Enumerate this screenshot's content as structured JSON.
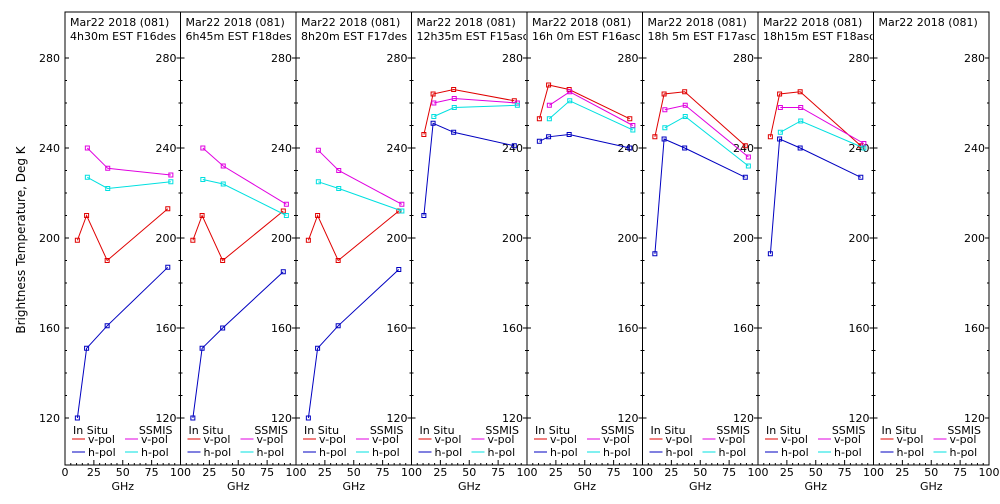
{
  "figure": {
    "ylabel": "Brightness Temperature, Deg K",
    "y_ticks": [
      "120",
      "160",
      "200",
      "240",
      "280"
    ],
    "x_ticks_first": [
      "0",
      "25",
      "50",
      "75",
      "100"
    ],
    "x_ticks_rest": [
      "25",
      "50",
      "75",
      "100"
    ],
    "xlabel": "GHz",
    "legend_left_header": "In Situ",
    "legend_right_header": "SSMIS",
    "legend_v": "v-pol",
    "legend_h": "h-pol",
    "colors": {
      "insitu_v": "#e00000",
      "insitu_h": "#0000c0",
      "ssmis_v": "#e000e0",
      "ssmis_h": "#00e0e0"
    }
  },
  "chart_data": [
    {
      "type": "line",
      "title": "Mar22 2018 (081)",
      "subtitle": "4h30m EST F16des",
      "xlabel": "GHz",
      "ylabel": "Brightness Temperature, Deg K",
      "xlim": [
        0,
        100
      ],
      "ylim": [
        115,
        290
      ],
      "series": [
        {
          "name": "In Situ v-pol",
          "x": [
            10.7,
            18.7,
            36.5,
            89.0
          ],
          "values": [
            199,
            210,
            190,
            213
          ]
        },
        {
          "name": "In Situ h-pol",
          "x": [
            10.7,
            18.7,
            36.5,
            89.0
          ],
          "values": [
            120,
            151,
            161,
            187
          ]
        },
        {
          "name": "SSMIS v-pol",
          "x": [
            19.35,
            37.0,
            91.655
          ],
          "values": [
            240,
            231,
            228
          ]
        },
        {
          "name": "SSMIS h-pol",
          "x": [
            19.35,
            37.0,
            91.655
          ],
          "values": [
            227,
            222,
            225
          ]
        }
      ]
    },
    {
      "type": "line",
      "title": "Mar22 2018 (081)",
      "subtitle": "6h45m EST F18des",
      "xlabel": "GHz",
      "ylabel": "",
      "xlim": [
        0,
        100
      ],
      "ylim": [
        115,
        290
      ],
      "series": [
        {
          "name": "In Situ v-pol",
          "x": [
            10.7,
            18.7,
            36.5,
            89.0
          ],
          "values": [
            199,
            210,
            190,
            212
          ]
        },
        {
          "name": "In Situ h-pol",
          "x": [
            10.7,
            18.7,
            36.5,
            89.0
          ],
          "values": [
            120,
            151,
            160,
            185
          ]
        },
        {
          "name": "SSMIS v-pol",
          "x": [
            19.35,
            37.0,
            91.655
          ],
          "values": [
            240,
            232,
            215
          ]
        },
        {
          "name": "SSMIS h-pol",
          "x": [
            19.35,
            37.0,
            91.655
          ],
          "values": [
            226,
            224,
            210
          ]
        }
      ]
    },
    {
      "type": "line",
      "title": "Mar22 2018 (081)",
      "subtitle": "8h20m EST F17des",
      "xlabel": "GHz",
      "ylabel": "",
      "xlim": [
        0,
        100
      ],
      "ylim": [
        115,
        290
      ],
      "series": [
        {
          "name": "In Situ v-pol",
          "x": [
            10.7,
            18.7,
            36.5,
            89.0
          ],
          "values": [
            199,
            210,
            190,
            212
          ]
        },
        {
          "name": "In Situ h-pol",
          "x": [
            10.7,
            18.7,
            36.5,
            89.0
          ],
          "values": [
            120,
            151,
            161,
            186
          ]
        },
        {
          "name": "SSMIS v-pol",
          "x": [
            19.35,
            37.0,
            91.655
          ],
          "values": [
            239,
            230,
            215
          ]
        },
        {
          "name": "SSMIS h-pol",
          "x": [
            19.35,
            37.0,
            91.655
          ],
          "values": [
            225,
            222,
            212
          ]
        }
      ]
    },
    {
      "type": "line",
      "title": "Mar22 2018 (081)",
      "subtitle": "12h35m EST F15asc",
      "xlabel": "GHz",
      "ylabel": "",
      "xlim": [
        0,
        100
      ],
      "ylim": [
        115,
        290
      ],
      "series": [
        {
          "name": "In Situ v-pol",
          "x": [
            10.7,
            18.7,
            36.5,
            89.0
          ],
          "values": [
            246,
            264,
            266,
            261
          ]
        },
        {
          "name": "In Situ h-pol",
          "x": [
            10.7,
            18.7,
            36.5,
            89.0
          ],
          "values": [
            210,
            251,
            247,
            241
          ]
        },
        {
          "name": "SSMIS v-pol",
          "x": [
            19.35,
            37.0,
            91.655
          ],
          "values": [
            260,
            262,
            260
          ]
        },
        {
          "name": "SSMIS h-pol",
          "x": [
            19.35,
            37.0,
            91.655
          ],
          "values": [
            254,
            258,
            259
          ]
        }
      ]
    },
    {
      "type": "line",
      "title": "Mar22 2018 (081)",
      "subtitle": "16h 0m EST F16asc",
      "xlabel": "GHz",
      "ylabel": "",
      "xlim": [
        0,
        100
      ],
      "ylim": [
        115,
        290
      ],
      "series": [
        {
          "name": "In Situ v-pol",
          "x": [
            10.7,
            18.7,
            36.5,
            89.0
          ],
          "values": [
            253,
            268,
            266,
            253
          ]
        },
        {
          "name": "In Situ h-pol",
          "x": [
            10.7,
            18.7,
            36.5,
            89.0
          ],
          "values": [
            243,
            245,
            246,
            240
          ]
        },
        {
          "name": "SSMIS v-pol",
          "x": [
            19.35,
            37.0,
            91.655
          ],
          "values": [
            259,
            265,
            250
          ]
        },
        {
          "name": "SSMIS h-pol",
          "x": [
            19.35,
            37.0,
            91.655
          ],
          "values": [
            253,
            261,
            248
          ]
        }
      ]
    },
    {
      "type": "line",
      "title": "Mar22 2018 (081)",
      "subtitle": "18h 5m EST F17asc",
      "xlabel": "GHz",
      "ylabel": "",
      "xlim": [
        0,
        100
      ],
      "ylim": [
        115,
        290
      ],
      "series": [
        {
          "name": "In Situ v-pol",
          "x": [
            10.7,
            18.7,
            36.5,
            89.0
          ],
          "values": [
            245,
            264,
            265,
            241
          ]
        },
        {
          "name": "In Situ h-pol",
          "x": [
            10.7,
            18.7,
            36.5,
            89.0
          ],
          "values": [
            193,
            244,
            240,
            227
          ]
        },
        {
          "name": "SSMIS v-pol",
          "x": [
            19.35,
            37.0,
            91.655
          ],
          "values": [
            257,
            259,
            236
          ]
        },
        {
          "name": "SSMIS h-pol",
          "x": [
            19.35,
            37.0,
            91.655
          ],
          "values": [
            249,
            254,
            232
          ]
        }
      ]
    },
    {
      "type": "line",
      "title": "Mar22 2018 (081)",
      "subtitle": "18h15m EST F18asc",
      "xlabel": "GHz",
      "ylabel": "",
      "xlim": [
        0,
        100
      ],
      "ylim": [
        115,
        290
      ],
      "series": [
        {
          "name": "In Situ v-pol",
          "x": [
            10.7,
            18.7,
            36.5,
            89.0
          ],
          "values": [
            245,
            264,
            265,
            241
          ]
        },
        {
          "name": "In Situ h-pol",
          "x": [
            10.7,
            18.7,
            36.5,
            89.0
          ],
          "values": [
            193,
            244,
            240,
            227
          ]
        },
        {
          "name": "SSMIS v-pol",
          "x": [
            19.35,
            37.0,
            91.655
          ],
          "values": [
            258,
            258,
            242
          ]
        },
        {
          "name": "SSMIS h-pol",
          "x": [
            19.35,
            37.0,
            91.655
          ],
          "values": [
            247,
            252,
            240
          ]
        }
      ]
    },
    {
      "type": "line",
      "title": "Mar22 2018 (081)",
      "subtitle": "",
      "xlabel": "GHz",
      "ylabel": "",
      "xlim": [
        0,
        100
      ],
      "ylim": [
        115,
        290
      ],
      "series": []
    }
  ]
}
